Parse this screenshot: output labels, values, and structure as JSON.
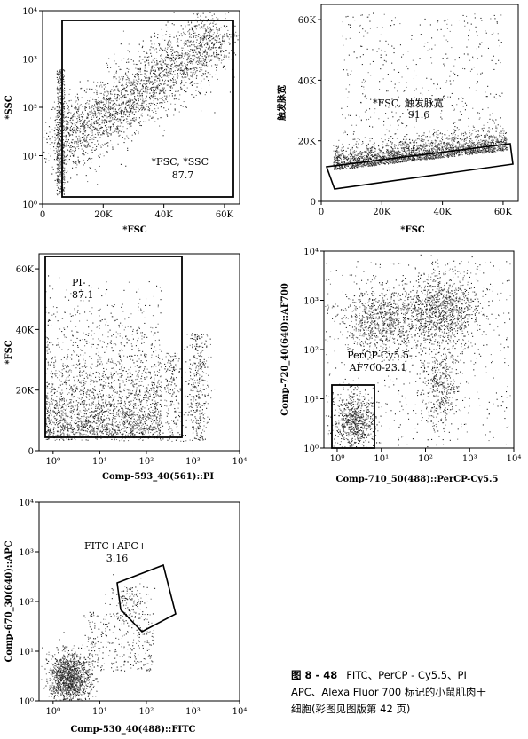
{
  "figure": {
    "caption": {
      "number": "图 8 - 48",
      "line1": "FITC、PerCP - Cy5.5、PI",
      "line2": "APC、Alexa Fluor 700 标记的小鼠肌肉干",
      "line3": "细胞(彩图见图版第 42 页)"
    }
  },
  "chart_data": [
    {
      "type": "scatter",
      "id": "p1",
      "xlabel": "*FSC",
      "ylabel": "*SSC",
      "x_scale": "linear",
      "y_scale": "log",
      "xlim": [
        0,
        65000
      ],
      "ylim": [
        1,
        10000
      ],
      "x_ticks": [
        "0",
        "20K",
        "40K",
        "60K"
      ],
      "y_ticks": [
        "10⁰",
        "10¹",
        "10²",
        "10³",
        "10⁴"
      ],
      "gate": {
        "shape": "rectangle",
        "label": "*FSC, *SSC",
        "value": "87.7"
      }
    },
    {
      "type": "scatter",
      "id": "p2",
      "xlabel": "*FSC",
      "ylabel": "触发脉宽",
      "x_scale": "linear",
      "y_scale": "linear",
      "xlim": [
        0,
        65000
      ],
      "ylim": [
        0,
        65000
      ],
      "x_ticks": [
        "0",
        "20K",
        "40K",
        "60K"
      ],
      "y_ticks": [
        "0",
        "20K",
        "40K",
        "60K"
      ],
      "gate": {
        "shape": "polygon",
        "label": "*FSC, 触发脉宽",
        "value": "91.6"
      }
    },
    {
      "type": "scatter",
      "id": "p3",
      "xlabel": "Comp-593_40(561)::PI",
      "ylabel": "*FSC",
      "x_scale": "log",
      "y_scale": "linear",
      "xlim": [
        0.5,
        10000
      ],
      "ylim": [
        0,
        65000
      ],
      "x_ticks": [
        "10⁰",
        "10¹",
        "10²",
        "10³",
        "10⁴"
      ],
      "y_ticks": [
        "0",
        "20K",
        "40K",
        "60K"
      ],
      "gate": {
        "shape": "rectangle",
        "label": "PI-",
        "value": "87.1"
      }
    },
    {
      "type": "scatter",
      "id": "p4",
      "xlabel": "Comp-710_50(488)::PerCP-Cy5.5",
      "ylabel": "Comp-720_40(640)::AF700",
      "x_scale": "log",
      "y_scale": "log",
      "xlim": [
        0.5,
        10000
      ],
      "ylim": [
        1,
        10000
      ],
      "x_ticks": [
        "10⁰",
        "10¹",
        "10²",
        "10³",
        "10⁴"
      ],
      "y_ticks": [
        "10⁰",
        "10¹",
        "10²",
        "10³",
        "10⁴"
      ],
      "gate": {
        "shape": "rectangle",
        "label": "PerCP-Cy5.5-",
        "label2": "AF700-23.1"
      }
    },
    {
      "type": "scatter",
      "id": "p5",
      "xlabel": "Comp-530_40(488)::FITC",
      "ylabel": "Comp-670_30(640)::APC",
      "x_scale": "log",
      "y_scale": "log",
      "xlim": [
        0.5,
        10000
      ],
      "ylim": [
        1,
        10000
      ],
      "x_ticks": [
        "10⁰",
        "10¹",
        "10²",
        "10³",
        "10⁴"
      ],
      "y_ticks": [
        "10⁰",
        "10¹",
        "10²",
        "10³",
        "10⁴"
      ],
      "gate": {
        "shape": "polygon",
        "label": "FITC+APC+",
        "value": "3.16"
      }
    }
  ]
}
